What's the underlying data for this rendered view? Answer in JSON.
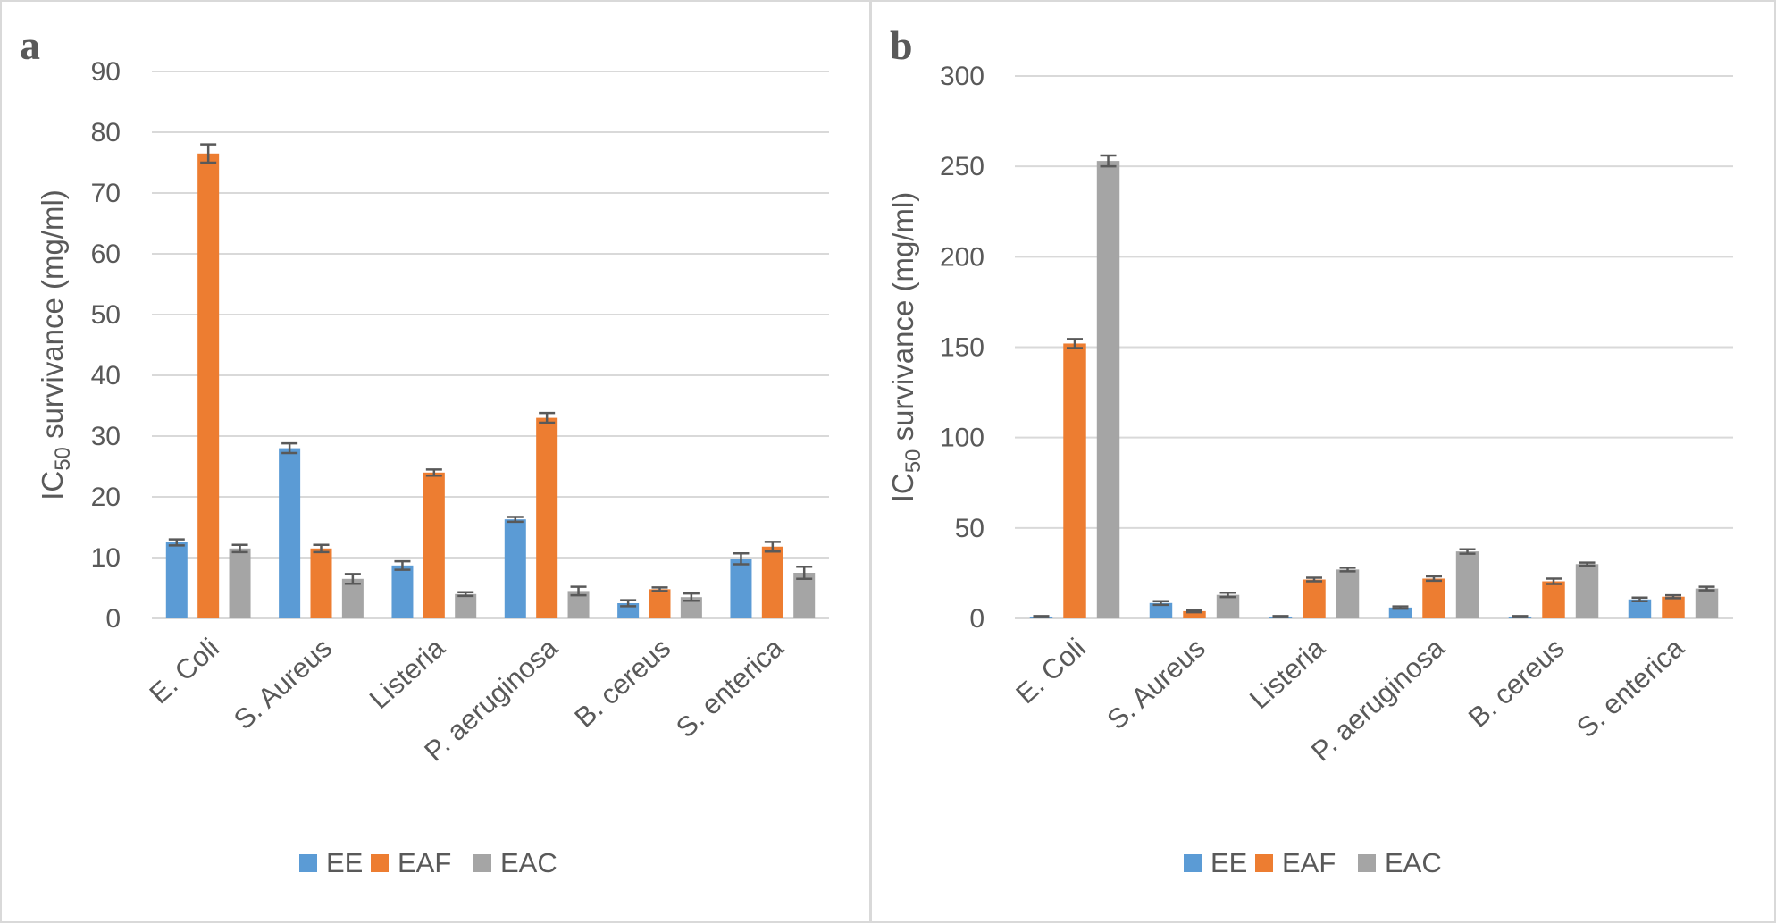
{
  "chart_data": [
    {
      "panel_label": "a",
      "type": "bar",
      "ylabel_main": "IC",
      "ylabel_sub": "50",
      "ylabel_rest": " survivance (mg/ml)",
      "xlabel": "",
      "ylim": [
        0,
        90
      ],
      "yticks": [
        0,
        10,
        20,
        30,
        40,
        50,
        60,
        70,
        80,
        90
      ],
      "grid": true,
      "legend_position": "bottom-center",
      "categories": [
        "E. Coli",
        "S. Aureus",
        "Listeria",
        "P. aeruginosa",
        "B. cereus",
        "S. enterica"
      ],
      "series": [
        {
          "name": "EE",
          "color": "#5b9bd5",
          "values": [
            12.5,
            28,
            8.7,
            16.3,
            2.5,
            9.8
          ],
          "errors": [
            0.5,
            0.8,
            0.7,
            0.4,
            0.5,
            0.9
          ]
        },
        {
          "name": "EAF",
          "color": "#ed7d31",
          "values": [
            76.5,
            11.5,
            24,
            33,
            4.8,
            11.8
          ],
          "errors": [
            1.5,
            0.6,
            0.5,
            0.8,
            0.3,
            0.8
          ]
        },
        {
          "name": "EAC",
          "color": "#a5a5a5",
          "values": [
            11.5,
            6.5,
            4,
            4.5,
            3.5,
            7.5
          ],
          "errors": [
            0.6,
            0.8,
            0.3,
            0.7,
            0.6,
            1.0
          ]
        }
      ]
    },
    {
      "panel_label": "b",
      "type": "bar",
      "ylabel_main": "IC",
      "ylabel_sub": "50",
      "ylabel_rest": " survivance (mg/ml)",
      "xlabel": "",
      "ylim": [
        0,
        300
      ],
      "yticks": [
        0,
        50,
        100,
        150,
        200,
        250,
        300
      ],
      "grid": true,
      "legend_position": "bottom-center",
      "categories": [
        "E. Coli",
        "S. Aureus",
        "Listeria",
        "P. aeruginosa",
        "B. cereus",
        "S. enterica"
      ],
      "series": [
        {
          "name": "EE",
          "color": "#5b9bd5",
          "values": [
            1,
            8.5,
            1,
            6,
            1,
            10.5
          ],
          "errors": [
            0.3,
            1.0,
            0.3,
            0.6,
            0.3,
            1.0
          ]
        },
        {
          "name": "EAF",
          "color": "#ed7d31",
          "values": [
            152,
            4,
            21.5,
            22,
            20.5,
            12
          ],
          "errors": [
            2.5,
            0.6,
            1.0,
            1.2,
            1.5,
            0.8
          ]
        },
        {
          "name": "EAC",
          "color": "#a5a5a5",
          "values": [
            253,
            13,
            27,
            37,
            30,
            16.5
          ],
          "errors": [
            3.0,
            1.2,
            1.0,
            1.2,
            0.8,
            1.0
          ]
        }
      ]
    }
  ]
}
